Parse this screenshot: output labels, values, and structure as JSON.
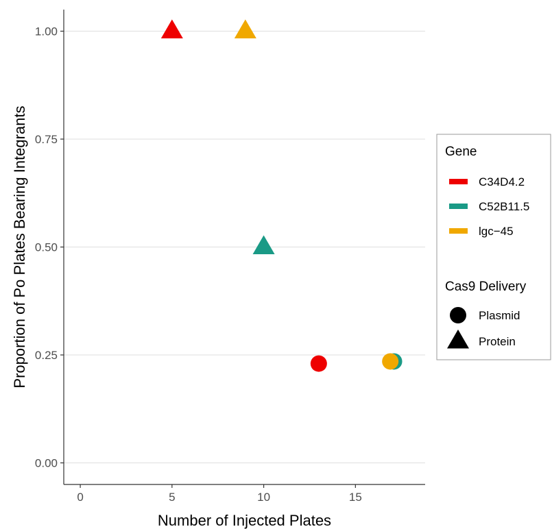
{
  "chart_data": {
    "type": "scatter",
    "xlabel": "Number of Injected Plates",
    "ylabel": "Proportion of Po Plates Bearing Integrants",
    "xlim": [
      -0.9,
      18.8
    ],
    "ylim": [
      -0.05,
      1.05
    ],
    "x_ticks": [
      0,
      5,
      10,
      15
    ],
    "y_ticks": [
      0.0,
      0.25,
      0.5,
      0.75,
      1.0
    ],
    "x_tick_labels": [
      "0",
      "5",
      "10",
      "15"
    ],
    "y_tick_labels": [
      "0.00",
      "0.25",
      "0.50",
      "0.75",
      "1.00"
    ],
    "grid": "horizontal",
    "legend_position": "right",
    "legend": {
      "gene_title": "Gene",
      "genes": [
        {
          "name": "C34D4.2",
          "color": "#ee0000"
        },
        {
          "name": "C52B11.5",
          "color": "#1a9a86"
        },
        {
          "name": "lgc−45",
          "color": "#f0a800"
        }
      ],
      "delivery_title": "Cas9 Delivery",
      "deliveries": [
        {
          "name": "Plasmid",
          "shape": "circle"
        },
        {
          "name": "Protein",
          "shape": "triangle"
        }
      ]
    },
    "points": [
      {
        "gene": "C34D4.2",
        "delivery": "Protein",
        "x": 5,
        "y": 1.0
      },
      {
        "gene": "lgc−45",
        "delivery": "Protein",
        "x": 9,
        "y": 1.0
      },
      {
        "gene": "C52B11.5",
        "delivery": "Protein",
        "x": 10,
        "y": 0.5
      },
      {
        "gene": "C34D4.2",
        "delivery": "Plasmid",
        "x": 13,
        "y": 0.23
      },
      {
        "gene": "C52B11.5",
        "delivery": "Plasmid",
        "x": 17.1,
        "y": 0.235
      },
      {
        "gene": "lgc−45",
        "delivery": "Plasmid",
        "x": 16.9,
        "y": 0.235
      }
    ]
  }
}
